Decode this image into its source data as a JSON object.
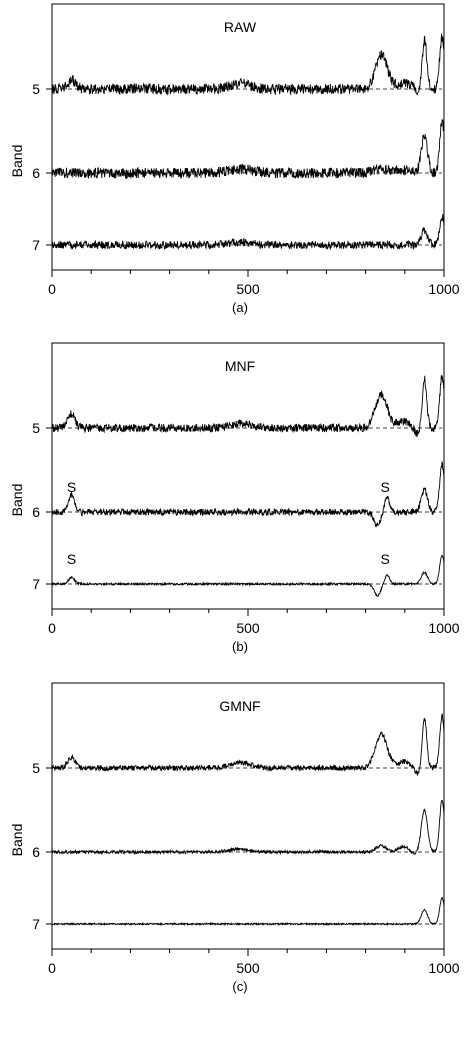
{
  "chart_data": [
    {
      "type": "line",
      "title": "RAW",
      "caption": "(a)",
      "xlabel": "",
      "ylabel": "Band",
      "xlim": [
        0,
        1000
      ],
      "xticks": [
        0,
        500,
        1000
      ],
      "yticks": [
        "5",
        "6",
        "7"
      ],
      "series": [
        {
          "band": "5",
          "noise": 1.0,
          "peaks": [
            [
              50,
              0.35,
              10
            ],
            [
              480,
              0.22,
              25
            ],
            [
              840,
              1.3,
              15
            ],
            [
              905,
              0.25,
              25
            ],
            [
              950,
              2.0,
              6
            ],
            [
              995,
              2.0,
              6
            ]
          ],
          "dips": [
            [
              935,
              0.3,
              12
            ]
          ],
          "annotations": []
        },
        {
          "band": "6",
          "noise": 1.0,
          "peaks": [
            [
              480,
              0.15,
              30
            ],
            [
              840,
              0.15,
              20
            ],
            [
              900,
              0.12,
              20
            ],
            [
              950,
              1.4,
              8
            ],
            [
              995,
              2.0,
              6
            ]
          ],
          "dips": [],
          "annotations": []
        },
        {
          "band": "7",
          "noise": 0.75,
          "peaks": [
            [
              480,
              0.1,
              30
            ],
            [
              950,
              0.55,
              8
            ],
            [
              995,
              1.1,
              6
            ]
          ],
          "dips": [],
          "annotations": []
        }
      ]
    },
    {
      "type": "line",
      "title": "MNF",
      "caption": "(b)",
      "xlabel": "",
      "ylabel": "Band",
      "xlim": [
        0,
        1000
      ],
      "xticks": [
        0,
        500,
        1000
      ],
      "yticks": [
        "5",
        "6",
        "7"
      ],
      "series": [
        {
          "band": "5",
          "noise": 0.8,
          "peaks": [
            [
              50,
              0.55,
              9
            ],
            [
              480,
              0.2,
              25
            ],
            [
              840,
              1.3,
              15
            ],
            [
              900,
              0.25,
              20
            ],
            [
              950,
              2.0,
              6
            ],
            [
              995,
              2.0,
              6
            ]
          ],
          "dips": [
            [
              935,
              0.3,
              12
            ]
          ],
          "annotations": []
        },
        {
          "band": "6",
          "noise": 0.6,
          "peaks": [
            [
              50,
              0.65,
              7
            ],
            [
              855,
              0.55,
              6
            ],
            [
              950,
              0.85,
              8
            ],
            [
              995,
              1.8,
              6
            ]
          ],
          "dips": [
            [
              830,
              0.55,
              8
            ]
          ],
          "annotations": [
            {
              "text": "S",
              "x": 50
            },
            {
              "text": "S",
              "x": 850
            }
          ]
        },
        {
          "band": "7",
          "noise": 0.2,
          "peaks": [
            [
              50,
              0.25,
              8
            ],
            [
              855,
              0.35,
              6
            ],
            [
              950,
              0.45,
              8
            ],
            [
              995,
              1.1,
              6
            ]
          ],
          "dips": [
            [
              830,
              0.45,
              8
            ]
          ],
          "annotations": [
            {
              "text": "S",
              "x": 50
            },
            {
              "text": "S",
              "x": 850
            }
          ]
        }
      ]
    },
    {
      "type": "line",
      "title": "GMNF",
      "caption": "(c)",
      "xlabel": "",
      "ylabel": "Band",
      "xlim": [
        0,
        1000
      ],
      "xticks": [
        0,
        500,
        1000
      ],
      "yticks": [
        "5",
        "6",
        "7"
      ],
      "series": [
        {
          "band": "5",
          "noise": 0.5,
          "peaks": [
            [
              50,
              0.4,
              10
            ],
            [
              480,
              0.22,
              25
            ],
            [
              840,
              1.3,
              15
            ],
            [
              900,
              0.25,
              20
            ],
            [
              950,
              2.0,
              6
            ],
            [
              995,
              2.0,
              6
            ]
          ],
          "dips": [
            [
              935,
              0.3,
              12
            ]
          ],
          "annotations": []
        },
        {
          "band": "6",
          "noise": 0.3,
          "peaks": [
            [
              480,
              0.12,
              25
            ],
            [
              840,
              0.25,
              12
            ],
            [
              900,
              0.22,
              15
            ],
            [
              950,
              1.6,
              8
            ],
            [
              995,
              2.0,
              6
            ]
          ],
          "dips": [
            [
              920,
              0.12,
              10
            ]
          ],
          "annotations": []
        },
        {
          "band": "7",
          "noise": 0.15,
          "peaks": [
            [
              950,
              0.55,
              8
            ],
            [
              995,
              1.0,
              6
            ]
          ],
          "dips": [],
          "annotations": []
        }
      ]
    }
  ]
}
